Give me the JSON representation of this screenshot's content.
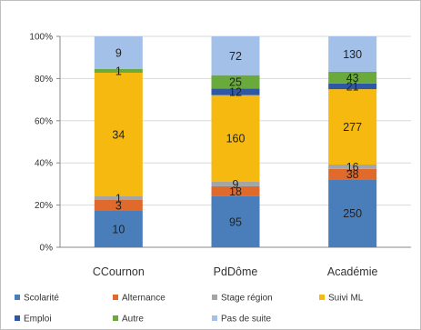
{
  "chart_data": {
    "type": "bar",
    "stacked": "percent",
    "categories": [
      "CCournon",
      "PdDôme",
      "Académie"
    ],
    "y_ticks": [
      "0%",
      "20%",
      "40%",
      "60%",
      "80%",
      "100%"
    ],
    "ylim": [
      0,
      100
    ],
    "grid": true,
    "legend_position": "bottom",
    "series": [
      {
        "name": "Scolarité",
        "color": "#4a7ebb",
        "values": [
          10,
          95,
          250
        ],
        "labels": [
          "10",
          "95",
          "250"
        ]
      },
      {
        "name": "Alternance",
        "color": "#e06a2c",
        "values": [
          3,
          18,
          38
        ],
        "labels": [
          "3",
          "18",
          "38"
        ]
      },
      {
        "name": "Stage région",
        "color": "#a5a5a5",
        "values": [
          1,
          9,
          16
        ],
        "labels": [
          "1",
          "9",
          "16"
        ]
      },
      {
        "name": "Suivi ML",
        "color": "#f5b90f",
        "values": [
          34,
          160,
          277
        ],
        "labels": [
          "34",
          "160",
          "277"
        ]
      },
      {
        "name": "Emploi",
        "color": "#2e58a6",
        "values": [
          0,
          12,
          21
        ],
        "labels": [
          "",
          "12",
          "21"
        ]
      },
      {
        "name": "Autre",
        "color": "#6aaa3c",
        "values": [
          1,
          25,
          43
        ],
        "labels": [
          "1",
          "25",
          "43"
        ]
      },
      {
        "name": "Pas de suite",
        "color": "#a3c1e8",
        "values": [
          9,
          72,
          130
        ],
        "labels": [
          "9",
          "72",
          "130"
        ]
      }
    ]
  }
}
